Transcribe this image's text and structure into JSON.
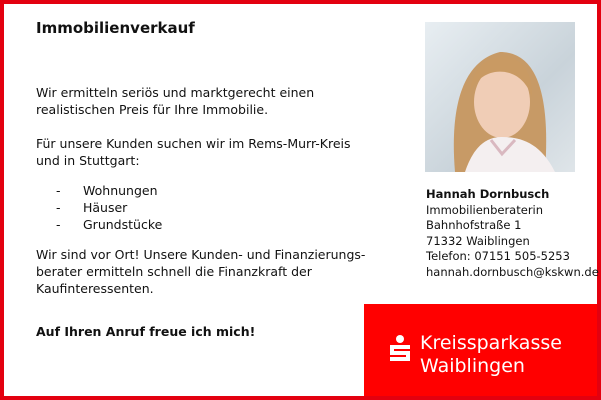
{
  "title": "Immobilienverkauf",
  "paragraphs": [
    "Wir ermitteln seriös und marktgerecht einen realistischen Preis für Ihre Immobilie.",
    "Für unsere Kunden suchen wir im Rems-Murr-Kreis und in Stuttgart:",
    "Wir sind vor Ort! Unsere Kunden- und Finanzierungs-berater ermitteln schnell die Finanzkraft der Kaufinteressenten."
  ],
  "list": [
    {
      "bullet": "-",
      "label": "Wohnungen"
    },
    {
      "bullet": "-",
      "label": "Häuser"
    },
    {
      "bullet": "-",
      "label": "Grundstücke"
    }
  ],
  "closing": "Auf Ihren Anruf freue ich mich!",
  "contact": {
    "name": "Hannah Dornbusch",
    "role": "Immobilienberaterin",
    "street": "Bahnhofstraße 1",
    "city": "71332 Waiblingen",
    "phone": "Telefon: 07151 505-5253",
    "email": "hannah.dornbusch@kskwn.de"
  },
  "brand": {
    "line1": "Kreissparkasse",
    "line2": "Waiblingen",
    "color": "#ff0000",
    "logo": "sparkasse-s-icon"
  },
  "border_color": "#e3000f"
}
